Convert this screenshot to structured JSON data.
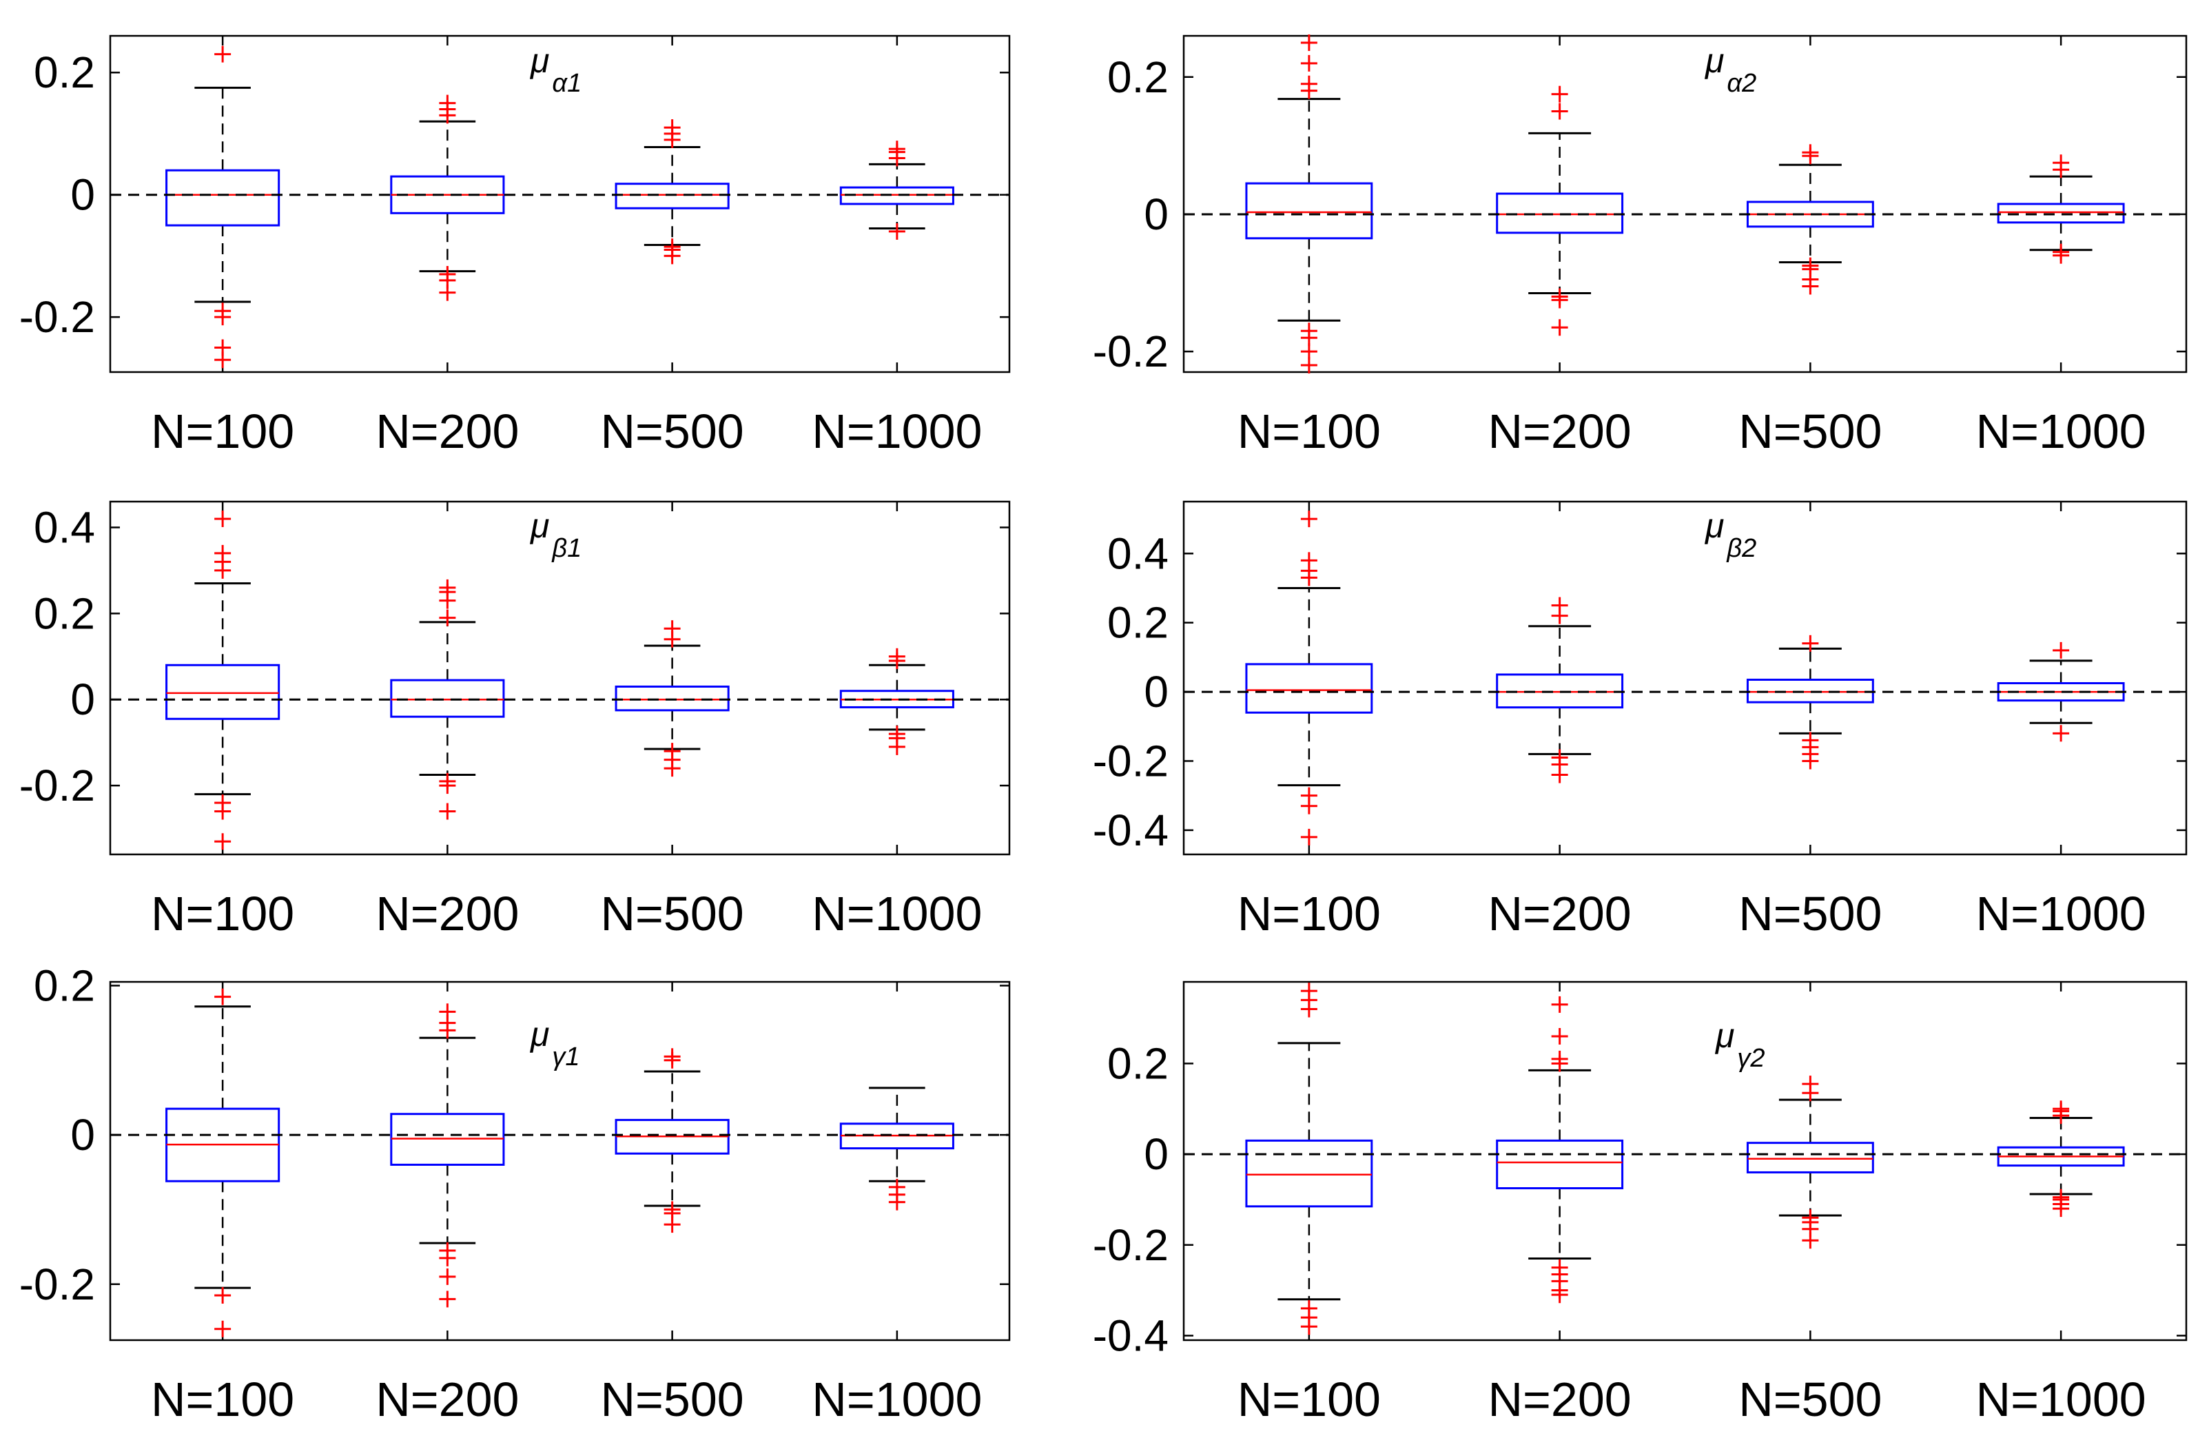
{
  "chart_data": [
    {
      "type": "boxplot",
      "title": "μ",
      "title_sub": "α1",
      "categories": [
        "N=100",
        "N=200",
        "N=500",
        "N=1000"
      ],
      "ylim": [
        -0.29,
        0.26
      ],
      "yticks": [
        0.2,
        0,
        -0.2
      ],
      "ytick_labels": [
        "0.2",
        "0",
        "-0.2"
      ],
      "reference_line": 0,
      "boxes": [
        {
          "q1": -0.05,
          "median": 0.0,
          "q3": 0.04,
          "whisker_low": -0.175,
          "whisker_high": 0.175,
          "outliers": [
            0.23,
            -0.19,
            -0.2,
            -0.25,
            -0.27
          ]
        },
        {
          "q1": -0.03,
          "median": 0.0,
          "q3": 0.03,
          "whisker_low": -0.125,
          "whisker_high": 0.12,
          "outliers": [
            0.13,
            0.14,
            0.15,
            -0.13,
            -0.14,
            -0.16
          ]
        },
        {
          "q1": -0.022,
          "median": 0.0,
          "q3": 0.018,
          "whisker_low": -0.082,
          "whisker_high": 0.078,
          "outliers": [
            0.09,
            0.1,
            0.11,
            -0.085,
            -0.09,
            -0.1
          ]
        },
        {
          "q1": -0.015,
          "median": 0.0,
          "q3": 0.012,
          "whisker_low": -0.055,
          "whisker_high": 0.05,
          "outliers": [
            0.06,
            0.07,
            0.075,
            -0.06
          ]
        }
      ]
    },
    {
      "type": "boxplot",
      "title": "μ",
      "title_sub": "α2",
      "categories": [
        "N=100",
        "N=200",
        "N=500",
        "N=1000"
      ],
      "ylim": [
        -0.23,
        0.26
      ],
      "yticks": [
        0.2,
        0,
        -0.2
      ],
      "ytick_labels": [
        "0.2",
        "0",
        "-0.2"
      ],
      "reference_line": 0,
      "boxes": [
        {
          "q1": -0.035,
          "median": 0.003,
          "q3": 0.045,
          "whisker_low": -0.155,
          "whisker_high": 0.168,
          "outliers": [
            0.18,
            0.19,
            0.22,
            0.25,
            -0.17,
            -0.18,
            -0.2,
            -0.22
          ]
        },
        {
          "q1": -0.027,
          "median": 0.0,
          "q3": 0.03,
          "whisker_low": -0.115,
          "whisker_high": 0.118,
          "outliers": [
            0.15,
            0.175,
            -0.12,
            -0.125,
            -0.165
          ]
        },
        {
          "q1": -0.018,
          "median": 0.0,
          "q3": 0.018,
          "whisker_low": -0.07,
          "whisker_high": 0.072,
          "outliers": [
            0.085,
            0.09,
            -0.075,
            -0.08,
            -0.095,
            -0.105
          ]
        },
        {
          "q1": -0.012,
          "median": 0.003,
          "q3": 0.015,
          "whisker_low": -0.052,
          "whisker_high": 0.055,
          "outliers": [
            0.065,
            0.075,
            -0.055,
            -0.06
          ]
        }
      ]
    },
    {
      "type": "boxplot",
      "title": "μ",
      "title_sub": "β1",
      "categories": [
        "N=100",
        "N=200",
        "N=500",
        "N=1000"
      ],
      "ylim": [
        -0.36,
        0.46
      ],
      "yticks": [
        0.4,
        0.2,
        0,
        -0.2
      ],
      "ytick_labels": [
        "0.4",
        "0.2",
        "0",
        "-0.2"
      ],
      "reference_line": 0,
      "boxes": [
        {
          "q1": -0.045,
          "median": 0.015,
          "q3": 0.08,
          "whisker_low": -0.22,
          "whisker_high": 0.27,
          "outliers": [
            0.3,
            0.32,
            0.34,
            0.42,
            -0.24,
            -0.26,
            -0.33
          ]
        },
        {
          "q1": -0.04,
          "median": 0.0,
          "q3": 0.045,
          "whisker_low": -0.175,
          "whisker_high": 0.18,
          "outliers": [
            0.19,
            0.23,
            0.25,
            0.26,
            -0.19,
            -0.2,
            -0.26
          ]
        },
        {
          "q1": -0.025,
          "median": 0.0,
          "q3": 0.03,
          "whisker_low": -0.115,
          "whisker_high": 0.125,
          "outliers": [
            0.14,
            0.165,
            -0.12,
            -0.14,
            -0.16
          ]
        },
        {
          "q1": -0.018,
          "median": 0.0,
          "q3": 0.02,
          "whisker_low": -0.07,
          "whisker_high": 0.08,
          "outliers": [
            0.09,
            0.1,
            -0.08,
            -0.09,
            -0.11
          ]
        }
      ]
    },
    {
      "type": "boxplot",
      "title": "μ",
      "title_sub": "β2",
      "categories": [
        "N=100",
        "N=200",
        "N=500",
        "N=1000"
      ],
      "ylim": [
        -0.47,
        0.55
      ],
      "yticks": [
        0.4,
        0.2,
        0,
        -0.2,
        -0.4
      ],
      "ytick_labels": [
        "0.4",
        "0.2",
        "0",
        "-0.2",
        "-0.4"
      ],
      "reference_line": 0,
      "boxes": [
        {
          "q1": -0.06,
          "median": 0.005,
          "q3": 0.08,
          "whisker_low": -0.27,
          "whisker_high": 0.3,
          "outliers": [
            0.33,
            0.35,
            0.38,
            0.5,
            -0.3,
            -0.33,
            -0.42
          ]
        },
        {
          "q1": -0.045,
          "median": 0.0,
          "q3": 0.05,
          "whisker_low": -0.18,
          "whisker_high": 0.19,
          "outliers": [
            0.22,
            0.25,
            -0.19,
            -0.21,
            -0.24
          ]
        },
        {
          "q1": -0.03,
          "median": 0.0,
          "q3": 0.035,
          "whisker_low": -0.12,
          "whisker_high": 0.125,
          "outliers": [
            0.14,
            -0.14,
            -0.16,
            -0.18,
            -0.2
          ]
        },
        {
          "q1": -0.025,
          "median": 0.0,
          "q3": 0.025,
          "whisker_low": -0.09,
          "whisker_high": 0.09,
          "outliers": [
            0.12,
            -0.12
          ]
        }
      ]
    },
    {
      "type": "boxplot",
      "title": "μ",
      "title_sub": "γ1",
      "categories": [
        "N=100",
        "N=200",
        "N=500",
        "N=1000"
      ],
      "ylim": [
        -0.275,
        0.205
      ],
      "yticks": [
        0.2,
        0,
        -0.2
      ],
      "ytick_labels": [
        "0.2",
        "0",
        "-0.2"
      ],
      "reference_line": 0,
      "boxes": [
        {
          "q1": -0.062,
          "median": -0.013,
          "q3": 0.035,
          "whisker_low": -0.205,
          "whisker_high": 0.172,
          "outliers": [
            0.185,
            -0.215,
            -0.26
          ]
        },
        {
          "q1": -0.04,
          "median": -0.005,
          "q3": 0.028,
          "whisker_low": -0.145,
          "whisker_high": 0.13,
          "outliers": [
            0.14,
            0.15,
            0.165,
            -0.155,
            -0.165,
            -0.19,
            -0.22
          ]
        },
        {
          "q1": -0.025,
          "median": -0.002,
          "q3": 0.02,
          "whisker_low": -0.095,
          "whisker_high": 0.085,
          "outliers": [
            0.1,
            0.105,
            -0.1,
            -0.105,
            -0.12
          ]
        },
        {
          "q1": -0.018,
          "median": -0.001,
          "q3": 0.015,
          "whisker_low": -0.062,
          "whisker_high": 0.063,
          "outliers": [
            -0.07,
            -0.08,
            -0.09
          ]
        }
      ]
    },
    {
      "type": "boxplot",
      "title": "μ",
      "title_sub": "γ2",
      "categories": [
        "N=100",
        "N=200",
        "N=500",
        "N=1000"
      ],
      "ylim": [
        -0.41,
        0.38
      ],
      "yticks": [
        0.2,
        0,
        -0.2,
        -0.4
      ],
      "ytick_labels": [
        "0.2",
        "0",
        "-0.2",
        "-0.4"
      ],
      "reference_line": 0,
      "boxes": [
        {
          "q1": -0.115,
          "median": -0.045,
          "q3": 0.03,
          "whisker_low": -0.32,
          "whisker_high": 0.245,
          "outliers": [
            0.32,
            0.34,
            0.36,
            -0.34,
            -0.36,
            -0.38
          ]
        },
        {
          "q1": -0.075,
          "median": -0.018,
          "q3": 0.03,
          "whisker_low": -0.23,
          "whisker_high": 0.185,
          "outliers": [
            0.2,
            0.21,
            0.26,
            0.33,
            -0.25,
            -0.265,
            -0.28,
            -0.3,
            -0.31
          ]
        },
        {
          "q1": -0.04,
          "median": -0.01,
          "q3": 0.025,
          "whisker_low": -0.135,
          "whisker_high": 0.12,
          "outliers": [
            0.135,
            0.155,
            -0.14,
            -0.15,
            -0.165,
            -0.19
          ]
        },
        {
          "q1": -0.025,
          "median": -0.005,
          "q3": 0.015,
          "whisker_low": -0.088,
          "whisker_high": 0.08,
          "outliers": [
            0.085,
            0.095,
            0.1,
            -0.095,
            -0.1,
            -0.11,
            -0.12
          ]
        }
      ]
    }
  ],
  "colors": {
    "box": "#0000ff",
    "median": "#ff0000",
    "outlier": "#ff0000",
    "whisker": "#000000",
    "reference_line": "#000000"
  }
}
